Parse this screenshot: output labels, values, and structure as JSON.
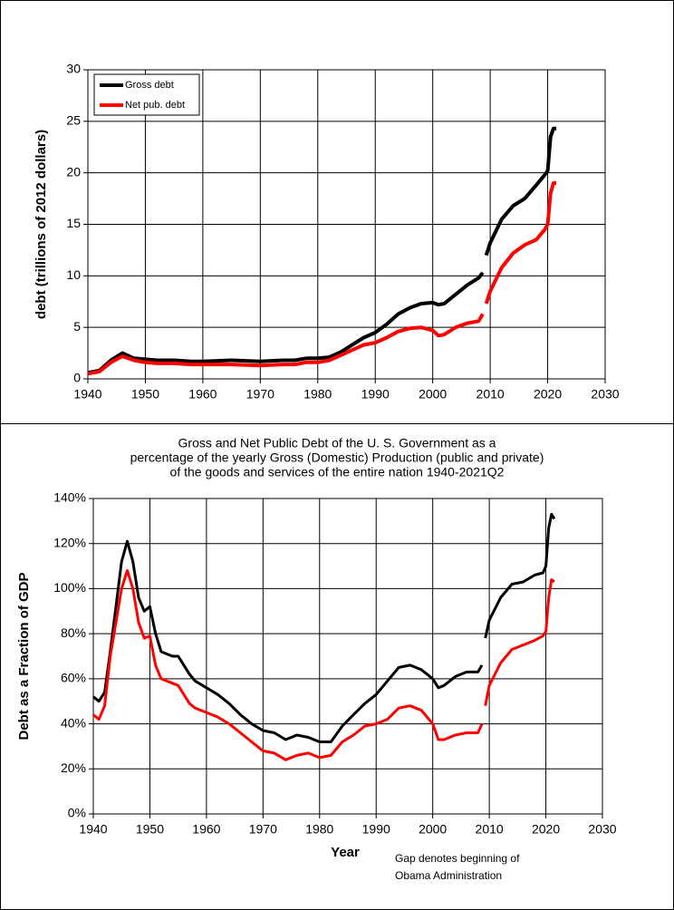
{
  "chart_data": [
    {
      "type": "line",
      "ylabel": "debt (trillions of  2012 dollars)",
      "legend": "upper left",
      "grid": true,
      "xlim": [
        1940,
        2030
      ],
      "xticks": [
        1940,
        1950,
        1960,
        1970,
        1980,
        1990,
        2000,
        2010,
        2020,
        2030
      ],
      "ylim": [
        0,
        30
      ],
      "yticks": [
        0,
        5,
        10,
        15,
        20,
        25,
        30
      ],
      "x": [
        1940,
        1942,
        1944,
        1946,
        1948,
        1950,
        1952,
        1955,
        1958,
        1960,
        1965,
        1970,
        1974,
        1976,
        1978,
        1980,
        1982,
        1984,
        1986,
        1988,
        1990,
        1992,
        1994,
        1996,
        1998,
        2000,
        2001,
        2002,
        2004,
        2006,
        2008,
        2008.7,
        2009,
        2009.3,
        2010,
        2012,
        2014,
        2016,
        2018,
        2019.5,
        2020,
        2020.5,
        2021,
        2021.5
      ],
      "series": [
        {
          "name": "Gross debt",
          "color": "#000000",
          "values": [
            0.6,
            0.8,
            1.8,
            2.5,
            2.0,
            1.9,
            1.8,
            1.8,
            1.7,
            1.7,
            1.8,
            1.7,
            1.8,
            1.8,
            2.0,
            2.0,
            2.1,
            2.6,
            3.3,
            4.0,
            4.5,
            5.3,
            6.3,
            6.9,
            7.3,
            7.4,
            7.2,
            7.3,
            8.2,
            9.1,
            9.8,
            10.3,
            null,
            12.0,
            13.2,
            15.5,
            16.8,
            17.5,
            18.8,
            19.8,
            20.2,
            23.5,
            24.3,
            24.3
          ]
        },
        {
          "name": "Net pub. debt",
          "color": "#ff0000",
          "values": [
            0.5,
            0.7,
            1.6,
            2.2,
            1.8,
            1.6,
            1.5,
            1.5,
            1.4,
            1.4,
            1.4,
            1.3,
            1.4,
            1.4,
            1.6,
            1.6,
            1.8,
            2.3,
            2.8,
            3.3,
            3.5,
            4.0,
            4.6,
            4.9,
            5.0,
            4.7,
            4.2,
            4.3,
            5.0,
            5.4,
            5.6,
            6.3,
            null,
            7.3,
            8.5,
            10.8,
            12.2,
            13.0,
            13.5,
            14.5,
            15.0,
            18.0,
            19.0,
            19.0
          ]
        }
      ]
    },
    {
      "type": "line",
      "title": [
        "Gross and Net Public Debt of the U. S. Government as a",
        "percentage of the yearly Gross (Domestic) Production (public and private)",
        "of the goods and services of the entire nation 1940-2021Q2"
      ],
      "xlabel": "Year",
      "ylabel": "Debt as a Fraction of GDP",
      "annotation": [
        "Gap denotes beginning of",
        "Obama Administration"
      ],
      "grid": true,
      "xlim": [
        1940,
        2030
      ],
      "xticks": [
        1940,
        1950,
        1960,
        1970,
        1980,
        1990,
        2000,
        2010,
        2020,
        2030
      ],
      "ylim": [
        0,
        140
      ],
      "yticks": [
        {
          "value": 0,
          "label": "0%"
        },
        {
          "value": 20,
          "label": "20%"
        },
        {
          "value": 40,
          "label": "40%"
        },
        {
          "value": 60,
          "label": "60%"
        },
        {
          "value": 80,
          "label": "80%"
        },
        {
          "value": 100,
          "label": "100%"
        },
        {
          "value": 120,
          "label": "120%"
        },
        {
          "value": 140,
          "label": "140%"
        }
      ],
      "x": [
        1940,
        1941,
        1942,
        1943,
        1944,
        1945,
        1946,
        1947,
        1948,
        1949,
        1950,
        1951,
        1952,
        1954,
        1955,
        1957,
        1958,
        1960,
        1962,
        1964,
        1966,
        1968,
        1970,
        1972,
        1974,
        1976,
        1978,
        1980,
        1982,
        1984,
        1986,
        1988,
        1990,
        1992,
        1994,
        1996,
        1998,
        2000,
        2001,
        2002,
        2004,
        2006,
        2008,
        2008.7,
        2009,
        2009.3,
        2010,
        2012,
        2014,
        2016,
        2018,
        2019.5,
        2020,
        2020.5,
        2021,
        2021.5
      ],
      "series": [
        {
          "color": "#000000",
          "values": [
            52,
            50,
            54,
            72,
            92,
            112,
            121,
            112,
            96,
            90,
            92,
            80,
            72,
            70,
            70,
            62,
            59,
            56,
            53,
            49,
            44,
            40,
            37,
            36,
            33,
            35,
            34,
            32,
            32,
            39,
            44,
            49,
            53,
            59,
            65,
            66,
            64,
            60,
            56,
            57,
            61,
            63,
            63,
            66,
            null,
            78,
            86,
            96,
            102,
            103,
            106,
            107,
            110,
            127,
            133,
            131
          ]
        },
        {
          "color": "#ff0000",
          "values": [
            44,
            42,
            48,
            70,
            85,
            100,
            108,
            100,
            85,
            78,
            79,
            66,
            60,
            58,
            57,
            49,
            47,
            45,
            43,
            40,
            36,
            32,
            28,
            27,
            24,
            26,
            27,
            25,
            26,
            32,
            35,
            39,
            40,
            42,
            47,
            48,
            46,
            40,
            33,
            33,
            35,
            36,
            36,
            40,
            null,
            48,
            57,
            67,
            73,
            75,
            77,
            79,
            81,
            96,
            104,
            103
          ]
        }
      ]
    }
  ]
}
